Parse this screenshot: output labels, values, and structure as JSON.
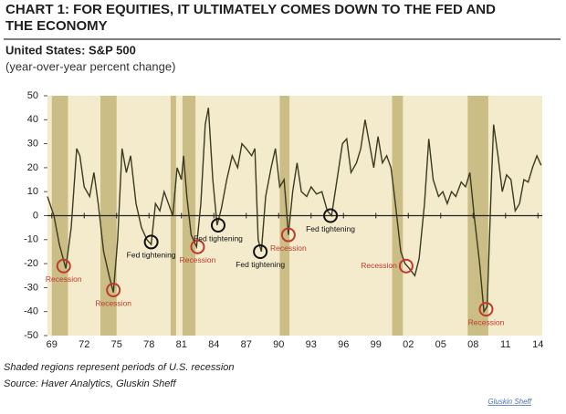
{
  "chart_data": {
    "type": "line",
    "title": "CHART 1: FOR EQUITIES, IT ULTIMATELY COMES DOWN TO THE FED AND THE ECONOMY",
    "subtitle": "United States: S&P 500",
    "y_label": "(year-over-year percent change)",
    "notes": [
      "Shaded regions represent periods of U.S. recession",
      "Source: Haver Analytics, Gluskin Sheff"
    ],
    "credit": "Gluskin Sheff",
    "x": [
      1968.6,
      1969.2,
      1969.7,
      1970.3,
      1970.8,
      1971.3,
      1971.6,
      1972.0,
      1972.5,
      1972.9,
      1973.3,
      1973.8,
      1974.3,
      1974.7,
      1975.1,
      1975.5,
      1975.9,
      1976.3,
      1976.8,
      1977.3,
      1977.8,
      1978.2,
      1978.6,
      1979.0,
      1979.4,
      1979.8,
      1980.2,
      1980.6,
      1981.0,
      1981.2,
      1981.5,
      1981.9,
      1982.4,
      1982.8,
      1983.2,
      1983.5,
      1983.9,
      1984.3,
      1984.7,
      1985.2,
      1985.7,
      1986.2,
      1986.6,
      1987.0,
      1987.5,
      1987.8,
      1988.1,
      1988.4,
      1988.8,
      1989.3,
      1989.7,
      1990.1,
      1990.5,
      1990.9,
      1991.3,
      1991.7,
      1992.1,
      1992.6,
      1993.0,
      1993.5,
      1994.0,
      1994.5,
      1994.9,
      1995.4,
      1995.9,
      1996.3,
      1996.7,
      1997.2,
      1997.6,
      1998.0,
      1998.4,
      1998.8,
      1999.2,
      1999.6,
      2000.0,
      2000.4,
      2000.8,
      2001.3,
      2001.7,
      2002.1,
      2002.6,
      2003.0,
      2003.5,
      2003.9,
      2004.3,
      2004.8,
      2005.2,
      2005.6,
      2006.0,
      2006.4,
      2006.9,
      2007.3,
      2007.7,
      2008.1,
      2008.6,
      2009.0,
      2009.3,
      2009.7,
      2009.9,
      2010.3,
      2010.7,
      2011.1,
      2011.5,
      2011.9,
      2012.3,
      2012.7,
      2013.1,
      2013.5,
      2013.9,
      2014.3
    ],
    "series": [
      {
        "color": "#3a3a1e",
        "values": [
          8,
          0,
          -12,
          -22,
          -5,
          28,
          25,
          12,
          8,
          18,
          5,
          -15,
          -25,
          -32,
          -10,
          28,
          18,
          25,
          5,
          -5,
          -10,
          -12,
          5,
          2,
          10,
          5,
          0,
          20,
          15,
          25,
          8,
          -8,
          -13,
          5,
          38,
          45,
          15,
          -4,
          3,
          15,
          25,
          20,
          30,
          28,
          25,
          28,
          -10,
          -15,
          8,
          20,
          28,
          12,
          15,
          -8,
          10,
          22,
          10,
          8,
          12,
          9,
          10,
          2,
          0,
          15,
          30,
          32,
          18,
          22,
          28,
          40,
          30,
          20,
          33,
          22,
          25,
          20,
          5,
          -15,
          -20,
          -22,
          -25,
          -18,
          5,
          32,
          15,
          8,
          10,
          5,
          10,
          8,
          14,
          12,
          18,
          0,
          -20,
          -40,
          -38,
          15,
          38,
          25,
          10,
          17,
          15,
          2,
          5,
          15,
          14,
          20,
          25,
          21
        ]
      }
    ],
    "recessions": [
      [
        1969.0,
        1970.5
      ],
      [
        1973.5,
        1975.0
      ],
      [
        1980.0,
        1980.5
      ],
      [
        1981.1,
        1982.3
      ],
      [
        1990.1,
        1991.0
      ],
      [
        2000.5,
        2001.5
      ],
      [
        2007.5,
        2009.4
      ]
    ],
    "recession_color": "#cbbd86",
    "background": "#f4ebcd",
    "annotations": [
      {
        "text": "Recession",
        "x": 1970.1,
        "y": -21,
        "color": "#c0392b",
        "side": "below"
      },
      {
        "text": "Recession",
        "x": 1974.7,
        "y": -31,
        "color": "#c0392b",
        "side": "below"
      },
      {
        "text": "Fed tightening",
        "x": 1978.2,
        "y": -11,
        "color": "#111111",
        "side": "below"
      },
      {
        "text": "Recession",
        "x": 1982.5,
        "y": -13,
        "color": "#c0392b",
        "side": "below"
      },
      {
        "text": "Fed tightening",
        "x": 1984.4,
        "y": -4,
        "color": "#111111",
        "side": "below"
      },
      {
        "text": "Fed tightening",
        "x": 1988.3,
        "y": -15,
        "color": "#111111",
        "side": "below"
      },
      {
        "text": "Recession",
        "x": 1990.9,
        "y": -8,
        "color": "#c0392b",
        "side": "below"
      },
      {
        "text": "Fed tightening",
        "x": 1994.8,
        "y": 0,
        "color": "#111111",
        "side": "below"
      },
      {
        "text": "Recession",
        "x": 2001.8,
        "y": -21,
        "color": "#c0392b",
        "side": "left"
      },
      {
        "text": "Recession",
        "x": 2009.2,
        "y": -39,
        "color": "#c0392b",
        "side": "below"
      }
    ],
    "xlim": [
      1968.6,
      2014.4
    ],
    "ylim": [
      -50,
      50
    ],
    "xticks": [
      {
        "value": 1969,
        "label": "69"
      },
      {
        "value": 1972,
        "label": "72"
      },
      {
        "value": 1975,
        "label": "75"
      },
      {
        "value": 1978,
        "label": "78"
      },
      {
        "value": 1981,
        "label": "81"
      },
      {
        "value": 1984,
        "label": "84"
      },
      {
        "value": 1987,
        "label": "87"
      },
      {
        "value": 1990,
        "label": "90"
      },
      {
        "value": 1993,
        "label": "93"
      },
      {
        "value": 1996,
        "label": "96"
      },
      {
        "value": 1999,
        "label": "99"
      },
      {
        "value": 2002,
        "label": "02"
      },
      {
        "value": 2005,
        "label": "05"
      },
      {
        "value": 2008,
        "label": "08"
      },
      {
        "value": 2011,
        "label": "11"
      },
      {
        "value": 2014,
        "label": "14"
      }
    ],
    "yticks": [
      -50,
      -40,
      -30,
      -20,
      -10,
      0,
      10,
      20,
      30,
      40,
      50
    ]
  }
}
